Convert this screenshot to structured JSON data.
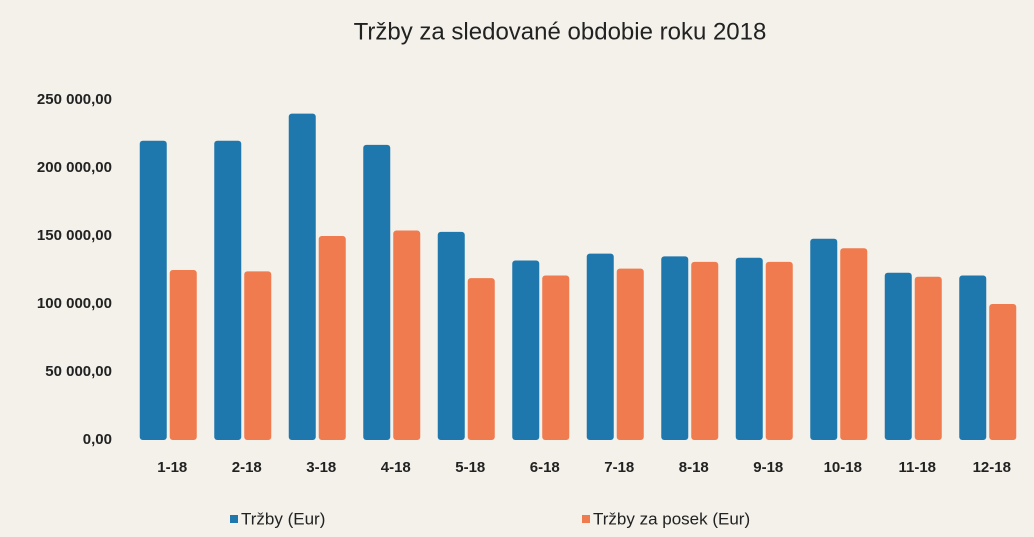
{
  "chart_data": {
    "type": "bar",
    "title": "Tržby za sledované obdobie roku 2018",
    "categories": [
      "1-18",
      "2-18",
      "3-18",
      "4-18",
      "5-18",
      "6-18",
      "7-18",
      "8-18",
      "9-18",
      "10-18",
      "11-18",
      "12-18"
    ],
    "series": [
      {
        "name": "Tržby (Eur)",
        "color": "#1f78ad",
        "values": [
          220000,
          220000,
          240000,
          217000,
          153000,
          132000,
          137000,
          135000,
          134000,
          148000,
          123000,
          121000
        ]
      },
      {
        "name": "Tržby za posek (Eur)",
        "color": "#ef7b4e",
        "values": [
          125000,
          124000,
          150000,
          154000,
          119000,
          121000,
          126000,
          131000,
          131000,
          141000,
          120000,
          100000
        ]
      }
    ],
    "ylim": [
      0,
      250000
    ],
    "yticks": [
      {
        "value": 0,
        "label": "0,00"
      },
      {
        "value": 50000,
        "label": "50 000,00"
      },
      {
        "value": 100000,
        "label": "100 000,00"
      },
      {
        "value": 150000,
        "label": "150 000,00"
      },
      {
        "value": 200000,
        "label": "200 000,00"
      },
      {
        "value": 250000,
        "label": "250 000,00"
      }
    ],
    "grid": false,
    "legend": "bottom"
  }
}
